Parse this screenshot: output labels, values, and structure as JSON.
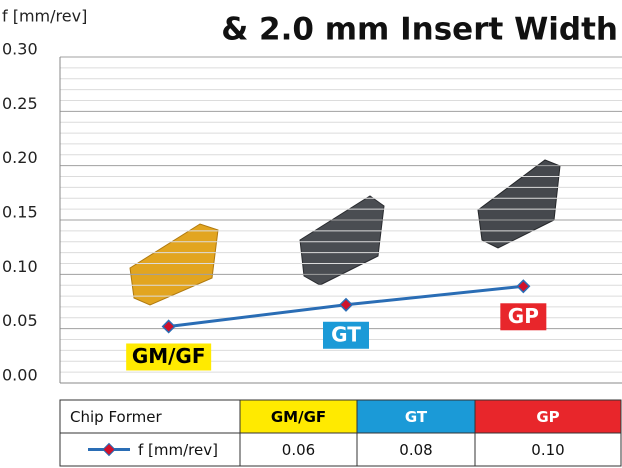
{
  "chart_data": {
    "type": "line",
    "title": "& 2.0 mm Insert Width",
    "y_label": "f [mm/rev]",
    "categories": [
      "GM/GF",
      "GT",
      "GP"
    ],
    "category_colors": [
      "#ffea00",
      "#1b9ad7",
      "#e8262b"
    ],
    "category_text_colors": [
      "#000000",
      "#ffffff",
      "#ffffff"
    ],
    "series": [
      {
        "name": "f [mm/rev]",
        "color": "#2a6db5",
        "marker_color": "#d0112b",
        "values": [
          0.052,
          0.072,
          0.089
        ]
      }
    ],
    "ylim": [
      0,
      0.3
    ],
    "yticks": [
      {
        "value": 0,
        "label": "0.00"
      },
      {
        "value": 0.05,
        "label": "0.05"
      },
      {
        "value": 0.1,
        "label": "0.10"
      },
      {
        "value": 0.15,
        "label": "0.15"
      },
      {
        "value": 0.2,
        "label": "0.20"
      },
      {
        "value": 0.25,
        "label": "0.25"
      },
      {
        "value": 0.3,
        "label": "0.30"
      }
    ],
    "grid": true,
    "minor_grid": true
  },
  "table": {
    "header": [
      "Chip Former",
      "GM/GF",
      "GT",
      "GP"
    ],
    "row": [
      "0.06",
      "0.08",
      "0.10"
    ]
  }
}
